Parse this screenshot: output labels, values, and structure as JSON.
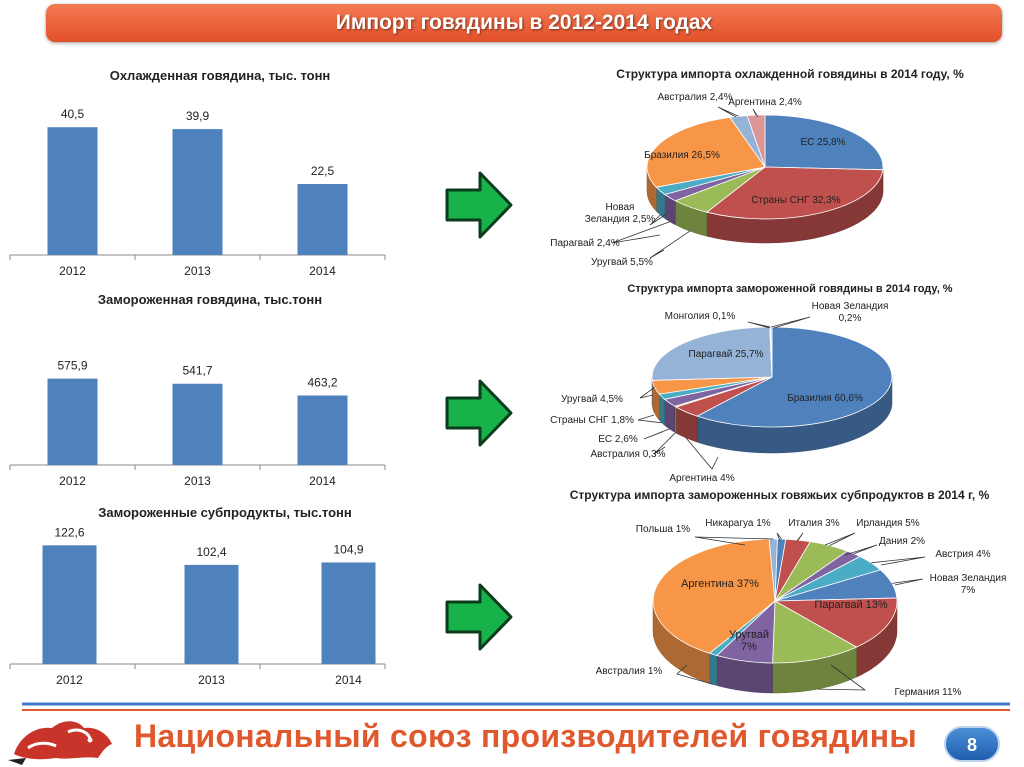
{
  "title": "Импорт говядины в 2012-2014 годах",
  "footer": {
    "organization": "Национальный союз производителей говядины",
    "page_number": "8"
  },
  "colors": {
    "bar": "#4f81bd",
    "title_bar": "#e8572f",
    "arrow": "#17b34a",
    "footer_text": "#e0592e"
  },
  "chart_data": [
    {
      "type": "bar",
      "title": "Охлажденная говядина, тыс. тонн",
      "categories": [
        "2012",
        "2013",
        "2014"
      ],
      "values": [
        40.5,
        39.9,
        22.5
      ],
      "data_labels": [
        "40,5",
        "39,9",
        "22,5"
      ],
      "ylim": [
        0,
        45
      ]
    },
    {
      "type": "bar",
      "title": "Замороженная говядина, тыс.тонн",
      "categories": [
        "2012",
        "2013",
        "2014"
      ],
      "values": [
        575.9,
        541.7,
        463.2
      ],
      "data_labels": [
        "575,9",
        "541,7",
        "463,2"
      ],
      "ylim": [
        0,
        700
      ]
    },
    {
      "type": "bar",
      "title": "Замороженные субпродукты, тыс.тонн",
      "categories": [
        "2012",
        "2013",
        "2014"
      ],
      "values": [
        122.6,
        102.4,
        104.9
      ],
      "data_labels": [
        "122,6",
        "102,4",
        "104,9"
      ],
      "ylim": [
        0,
        125
      ]
    },
    {
      "type": "pie",
      "title": "Структура импорта охлажденной говядины в 2014 году, %",
      "slices": [
        {
          "label": "ЕС 25,8%",
          "value": 25.8,
          "color": "#4f81bd"
        },
        {
          "label": "Страны СНГ 32,3%",
          "value": 32.3,
          "color": "#c0504d"
        },
        {
          "label": "Уругвай 5,5%",
          "value": 5.5,
          "color": "#9bbb59"
        },
        {
          "label": "Парагвай 2,4%",
          "value": 2.4,
          "color": "#8064a2"
        },
        {
          "label": "Новая Зеландия 2,5%",
          "value": 2.5,
          "color": "#4bacc6"
        },
        {
          "label": "Бразилия 26,5%",
          "value": 26.5,
          "color": "#f79646"
        },
        {
          "label": "Австралия 2,4%",
          "value": 2.4,
          "color": "#95b3d7"
        },
        {
          "label": "Аргентина 2,4%",
          "value": 2.4,
          "color": "#d99694"
        }
      ]
    },
    {
      "type": "pie",
      "title": "Структура импорта замороженной говядины в 2014 году, %",
      "slices": [
        {
          "label": "Бразилия 60,6%",
          "value": 60.6,
          "color": "#4f81bd"
        },
        {
          "label": "Аргентина 4%",
          "value": 4.0,
          "color": "#c0504d"
        },
        {
          "label": "Австралия 0,3%",
          "value": 0.3,
          "color": "#9bbb59"
        },
        {
          "label": "ЕС 2,6%",
          "value": 2.6,
          "color": "#8064a2"
        },
        {
          "label": "Страны СНГ 1,8%",
          "value": 1.8,
          "color": "#4bacc6"
        },
        {
          "label": "Уругвай 4,5%",
          "value": 4.5,
          "color": "#f79646"
        },
        {
          "label": "Парагвай 25,7%",
          "value": 25.7,
          "color": "#95b3d7"
        },
        {
          "label": "Монголия 0,1%",
          "value": 0.1,
          "color": "#d99694"
        },
        {
          "label": "Новая Зеландия 0,2%",
          "value": 0.2,
          "color": "#c3d69b"
        }
      ]
    },
    {
      "type": "pie",
      "title": "Структура импорта замороженных говяжьих субпродуктов в 2014 г, %",
      "slices": [
        {
          "label": "Никарагуа 1%",
          "value": 1,
          "color": "#4f81bd"
        },
        {
          "label": "Италия 3%",
          "value": 3,
          "color": "#c0504d"
        },
        {
          "label": "Ирландия 5%",
          "value": 5,
          "color": "#9bbb59"
        },
        {
          "label": "Дания 2%",
          "value": 2,
          "color": "#8064a2"
        },
        {
          "label": "Австрия 4%",
          "value": 4,
          "color": "#4bacc6"
        },
        {
          "label": "Новая Зеландия 7%",
          "value": 7,
          "color": "#4f81bd"
        },
        {
          "label": "Парагвай 13%",
          "value": 13,
          "color": "#c0504d"
        },
        {
          "label": "Германия 11%",
          "value": 11,
          "color": "#9bbb59"
        },
        {
          "label": "Уругвай 7%",
          "value": 7,
          "color": "#8064a2"
        },
        {
          "label": "Австралия 1%",
          "value": 1,
          "color": "#4bacc6"
        },
        {
          "label": "Аргентина 37%",
          "value": 37,
          "color": "#f79646"
        },
        {
          "label": "Польша 1%",
          "value": 1,
          "color": "#95b3d7"
        }
      ]
    }
  ]
}
